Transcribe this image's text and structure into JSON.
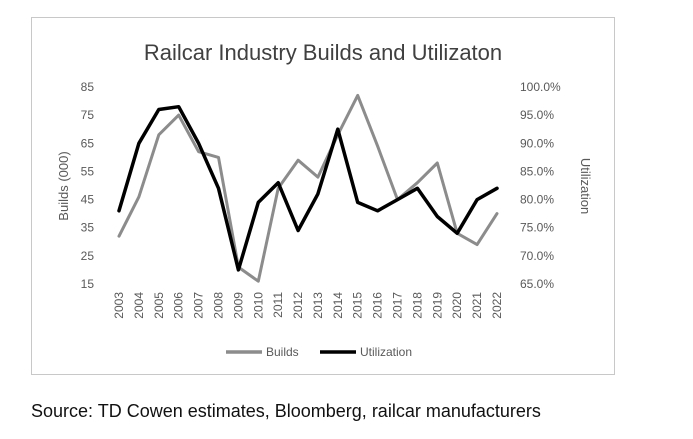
{
  "chart_data": {
    "type": "line",
    "title": "Railcar Industry Builds and Utilizaton",
    "categories": [
      "2003",
      "2004",
      "2005",
      "2006",
      "2007",
      "2008",
      "2009",
      "2010",
      "2011",
      "2012",
      "2013",
      "2014",
      "2015",
      "2016",
      "2017",
      "2018",
      "2019",
      "2020",
      "2021",
      "2022"
    ],
    "ylabel": "Builds (000)",
    "y2label": "Utilization",
    "ylim": [
      15,
      85
    ],
    "yticks": [
      "85",
      "75",
      "65",
      "55",
      "45",
      "35",
      "25",
      "15"
    ],
    "y2lim": [
      65.0,
      100.0
    ],
    "y2ticks": [
      "100.0%",
      "95.0%",
      "90.0%",
      "85.0%",
      "80.0%",
      "75.0%",
      "70.0%",
      "65.0%"
    ],
    "series": [
      {
        "name": "Builds",
        "axis": "left",
        "color": "#8c8c8c",
        "values": [
          32,
          46,
          68,
          75,
          62,
          60,
          21,
          16,
          49,
          59,
          53,
          68,
          82,
          64,
          45,
          51,
          58,
          33,
          29,
          40
        ]
      },
      {
        "name": "Utilization",
        "axis": "right",
        "color": "#000000",
        "values": [
          78.0,
          90.0,
          96.0,
          96.5,
          90.0,
          82.0,
          67.5,
          79.5,
          83.0,
          74.5,
          81.0,
          92.5,
          79.5,
          78.0,
          80.0,
          82.0,
          77.0,
          74.0,
          80.0,
          82.0
        ]
      }
    ],
    "legend_position": "bottom-center",
    "grid": false
  },
  "source_text": "Source: TD Cowen estimates, Bloomberg, railcar manufacturers"
}
